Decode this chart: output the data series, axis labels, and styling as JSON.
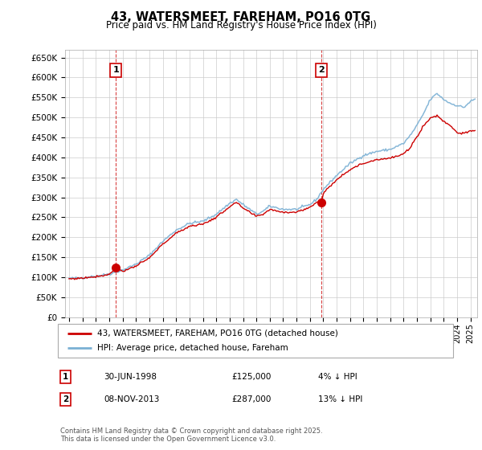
{
  "title": "43, WATERSMEET, FAREHAM, PO16 0TG",
  "subtitle": "Price paid vs. HM Land Registry's House Price Index (HPI)",
  "ylim": [
    0,
    670000
  ],
  "yticks": [
    0,
    50000,
    100000,
    150000,
    200000,
    250000,
    300000,
    350000,
    400000,
    450000,
    500000,
    550000,
    600000,
    650000
  ],
  "sale1_date": 1998.497,
  "sale1_price": 125000,
  "sale1_label": "1",
  "sale2_date": 2013.854,
  "sale2_price": 287000,
  "sale2_label": "2",
  "legend_line1": "43, WATERSMEET, FAREHAM, PO16 0TG (detached house)",
  "legend_line2": "HPI: Average price, detached house, Fareham",
  "footnote1": "Contains HM Land Registry data © Crown copyright and database right 2025.",
  "footnote2": "This data is licensed under the Open Government Licence v3.0.",
  "price_color": "#cc0000",
  "hpi_color": "#7ab0d4",
  "bg_color": "#ffffff",
  "grid_color": "#cccccc",
  "hpi_base_values": {
    "1995.0": 97000,
    "1996.0": 99000,
    "1997.0": 103000,
    "1998.0": 108000,
    "1999.0": 118000,
    "2000.0": 133000,
    "2001.0": 155000,
    "2002.0": 190000,
    "2003.0": 218000,
    "2004.0": 235000,
    "2005.0": 240000,
    "2006.0": 258000,
    "2007.0": 285000,
    "2007.5": 295000,
    "2008.0": 282000,
    "2009.0": 258000,
    "2009.5": 265000,
    "2010.0": 278000,
    "2011.0": 270000,
    "2012.0": 270000,
    "2013.0": 282000,
    "2013.5": 295000,
    "2014.0": 320000,
    "2015.0": 355000,
    "2016.0": 385000,
    "2017.0": 405000,
    "2018.0": 415000,
    "2019.0": 420000,
    "2020.0": 435000,
    "2020.5": 455000,
    "2021.0": 480000,
    "2021.5": 510000,
    "2022.0": 545000,
    "2022.5": 560000,
    "2023.0": 545000,
    "2023.5": 535000,
    "2024.0": 530000,
    "2024.5": 525000,
    "2025.0": 540000,
    "2025.3": 545000
  },
  "price_base_values": {
    "1995.0": 96000,
    "1996.0": 98000,
    "1997.0": 102000,
    "1998.0": 107000,
    "1998.497": 125000,
    "1999.0": 115000,
    "2000.0": 128000,
    "2001.0": 148000,
    "2002.0": 183000,
    "2003.0": 210000,
    "2004.0": 228000,
    "2005.0": 233000,
    "2006.0": 250000,
    "2007.0": 277000,
    "2007.5": 287000,
    "2008.0": 273000,
    "2009.0": 252000,
    "2009.5": 258000,
    "2010.0": 270000,
    "2011.0": 263000,
    "2012.0": 263000,
    "2013.0": 275000,
    "2013.5": 288000,
    "2013.854": 287000,
    "2014.0": 310000,
    "2015.0": 345000,
    "2016.0": 370000,
    "2017.0": 385000,
    "2018.0": 395000,
    "2019.0": 398000,
    "2020.0": 408000,
    "2020.5": 425000,
    "2021.0": 452000,
    "2021.5": 480000,
    "2022.0": 498000,
    "2022.5": 505000,
    "2023.0": 490000,
    "2023.5": 480000,
    "2024.0": 462000,
    "2024.5": 460000,
    "2025.0": 465000,
    "2025.3": 468000
  }
}
